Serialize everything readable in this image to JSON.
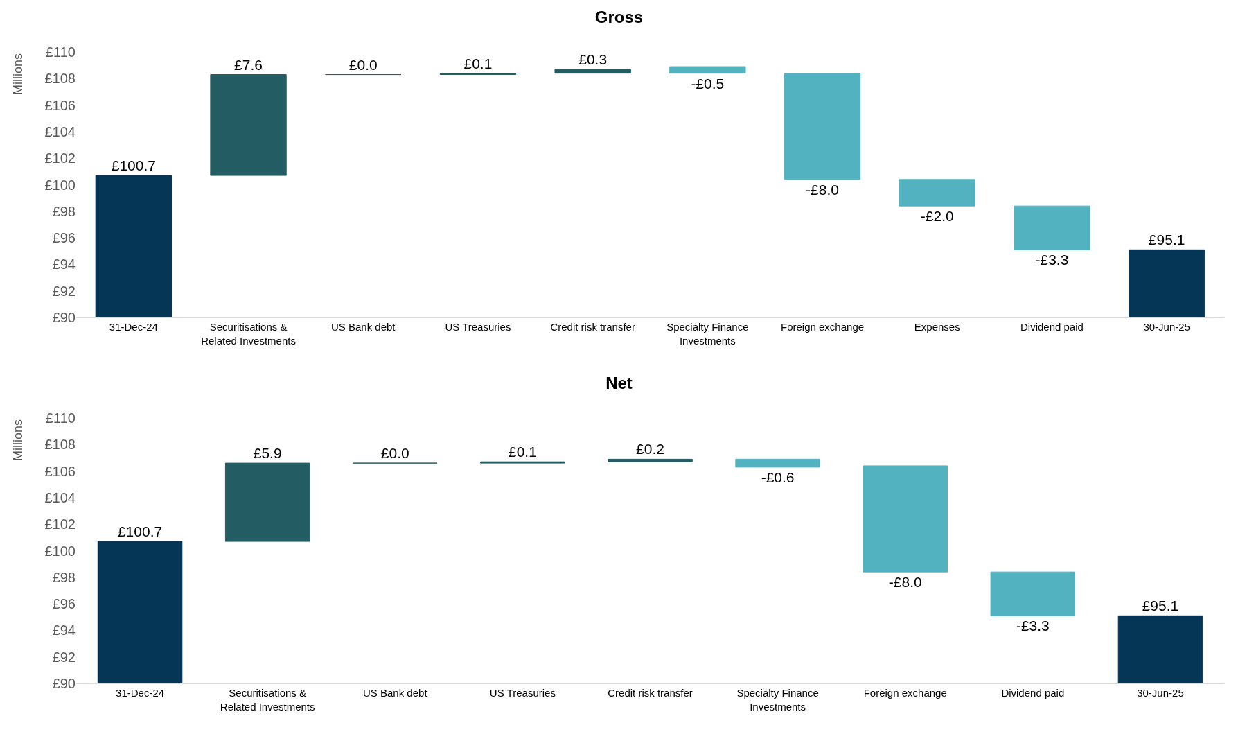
{
  "chart_data": [
    {
      "type": "bar",
      "title": "Gross",
      "ylabel": "Millions",
      "categories": [
        "31-Dec-24",
        "Securitisations & Related Investments",
        "US Bank debt",
        "US Treasuries",
        "Credit risk transfer",
        "Specialty Finance Investments",
        "Foreign exchange",
        "Expenses",
        "Dividend paid",
        "30-Jun-25"
      ],
      "base": [
        90,
        100.7,
        108.3,
        108.3,
        108.4,
        108.9,
        108.4,
        100.4,
        98.4,
        90
      ],
      "values": [
        10.7,
        7.6,
        0.0,
        0.1,
        0.3,
        -0.5,
        -8.0,
        -2.0,
        -3.3,
        5.1
      ],
      "value_labels": [
        "£100.7",
        "£7.6",
        "£0.0",
        "£0.1",
        "£0.3",
        "-£0.5",
        "-£8.0",
        "-£2.0",
        "-£3.3",
        "£95.1"
      ],
      "colors": [
        "#063656",
        "#235d63",
        "#235d63",
        "#235d63",
        "#235d63",
        "#52b2bf",
        "#52b2bf",
        "#52b2bf",
        "#52b2bf",
        "#063656"
      ],
      "ylim": [
        90,
        110
      ],
      "yticks": [
        {
          "value": 90,
          "label": "£90"
        },
        {
          "value": 92,
          "label": "£92"
        },
        {
          "value": 94,
          "label": "£94"
        },
        {
          "value": 96,
          "label": "£96"
        },
        {
          "value": 98,
          "label": "£98"
        },
        {
          "value": 100,
          "label": "£100"
        },
        {
          "value": 102,
          "label": "£102"
        },
        {
          "value": 104,
          "label": "£104"
        },
        {
          "value": 106,
          "label": "£106"
        },
        {
          "value": 108,
          "label": "£108"
        },
        {
          "value": 110,
          "label": "£110"
        }
      ]
    },
    {
      "type": "bar",
      "title": "Net",
      "ylabel": "Millions",
      "categories": [
        "31-Dec-24",
        "Securitisations & Related Investments",
        "US Bank debt",
        "US Treasuries",
        "Credit risk transfer",
        "Specialty Finance Investments",
        "Foreign exchange",
        "Dividend paid",
        "30-Jun-25"
      ],
      "base": [
        90,
        100.7,
        106.6,
        106.6,
        106.7,
        106.9,
        106.4,
        98.4,
        90
      ],
      "values": [
        10.7,
        5.9,
        0.0,
        0.1,
        0.2,
        -0.6,
        -8.0,
        -3.3,
        5.1
      ],
      "value_labels": [
        "£100.7",
        "£5.9",
        "£0.0",
        "£0.1",
        "£0.2",
        "-£0.6",
        "-£8.0",
        "-£3.3",
        "£95.1"
      ],
      "colors": [
        "#063656",
        "#235d63",
        "#235d63",
        "#235d63",
        "#235d63",
        "#52b2bf",
        "#52b2bf",
        "#52b2bf",
        "#063656"
      ],
      "ylim": [
        90,
        110
      ],
      "yticks": [
        {
          "value": 90,
          "label": "£90"
        },
        {
          "value": 92,
          "label": "£92"
        },
        {
          "value": 94,
          "label": "£94"
        },
        {
          "value": 96,
          "label": "£96"
        },
        {
          "value": 98,
          "label": "£98"
        },
        {
          "value": 100,
          "label": "£100"
        },
        {
          "value": 102,
          "label": "£102"
        },
        {
          "value": 104,
          "label": "£104"
        },
        {
          "value": 106,
          "label": "£106"
        },
        {
          "value": 108,
          "label": "£108"
        },
        {
          "value": 110,
          "label": "£110"
        }
      ]
    }
  ]
}
